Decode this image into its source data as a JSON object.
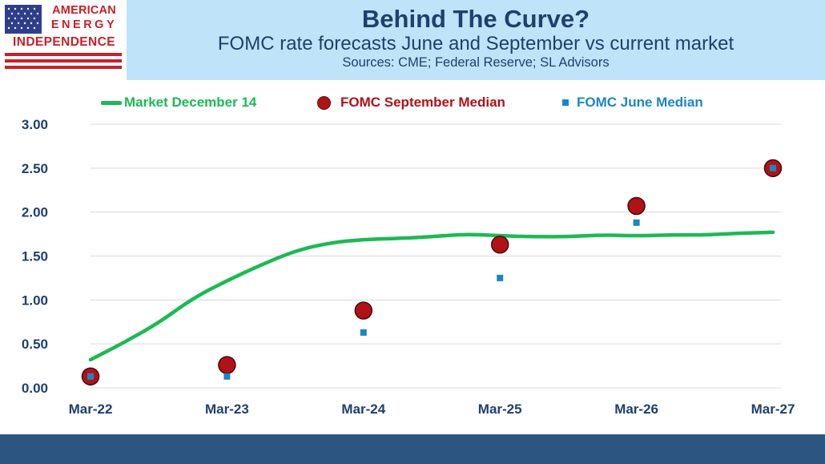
{
  "logo": {
    "line1": "AMERICAN",
    "line2": "ENERGY",
    "line3": "INDEPENDENCE"
  },
  "header": {
    "title": "Behind The Curve?",
    "subtitle": "FOMC rate forecasts June and September vs current market",
    "sources": "Sources: CME; Federal Reserve; SL Advisors"
  },
  "colors": {
    "market_line": "#1db954",
    "september_dot": "#b01218",
    "june_square": "#1b86c6",
    "axis_text": "#1f3f6e",
    "header_bg": "#bfe3f9",
    "footer_band": "#2d5582"
  },
  "chart_data": {
    "type": "line",
    "title": "",
    "xlabel": "",
    "ylabel": "",
    "ylim": [
      0,
      3
    ],
    "y_ticks": [
      "0.00",
      "0.50",
      "1.00",
      "1.50",
      "2.00",
      "2.50",
      "3.00"
    ],
    "x_ticks": [
      "Mar-22",
      "Mar-23",
      "Mar-24",
      "Mar-25",
      "Mar-26",
      "Mar-27"
    ],
    "xlim": [
      0,
      5
    ],
    "grid": true,
    "legend_position": "top",
    "series": [
      {
        "name": "Market December 14",
        "kind": "line",
        "x": [
          0,
          0.25,
          0.5,
          0.75,
          1.0,
          1.25,
          1.5,
          1.75,
          2.0,
          2.25,
          2.5,
          2.75,
          3.0,
          3.25,
          3.5,
          3.75,
          4.0,
          4.25,
          4.5,
          4.75,
          5.0
        ],
        "y": [
          0.32,
          0.52,
          0.74,
          1.02,
          1.22,
          1.4,
          1.56,
          1.65,
          1.69,
          1.7,
          1.72,
          1.75,
          1.73,
          1.72,
          1.72,
          1.74,
          1.73,
          1.74,
          1.74,
          1.76,
          1.77
        ]
      },
      {
        "name": "FOMC September Median",
        "kind": "dot",
        "x": [
          0,
          1,
          2,
          3,
          4,
          5
        ],
        "y": [
          0.13,
          0.26,
          0.88,
          1.63,
          2.07,
          2.5
        ]
      },
      {
        "name": "FOMC June Median",
        "kind": "square",
        "x": [
          0,
          1,
          2,
          3,
          4,
          5
        ],
        "y": [
          0.13,
          0.13,
          0.63,
          1.25,
          1.88,
          2.5
        ]
      }
    ]
  }
}
